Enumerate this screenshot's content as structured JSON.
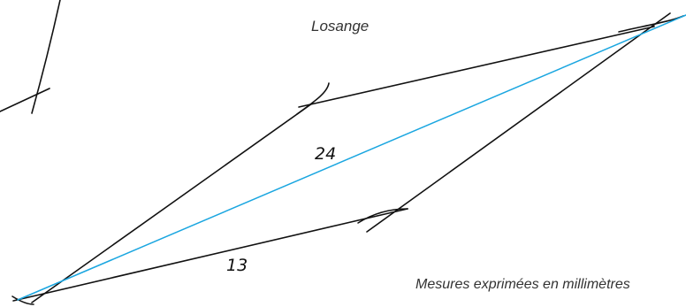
{
  "title": "Losange",
  "caption": "Mesures exprimées en millimètres",
  "diagonal_label": "24",
  "side_label": "13",
  "colors": {
    "lines": "#111111",
    "diagonal": "#1aa6e0",
    "text": "#333333"
  }
}
